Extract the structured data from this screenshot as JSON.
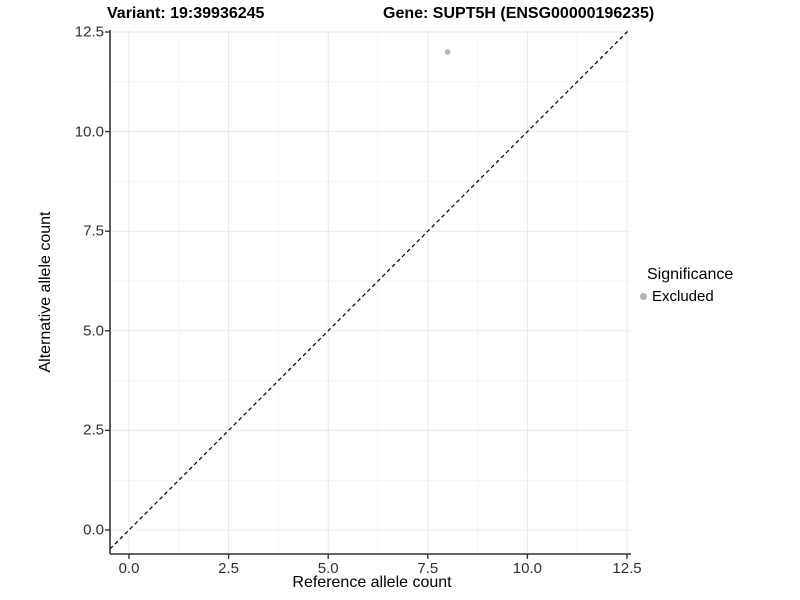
{
  "chart_data": {
    "type": "scatter",
    "title_left": "Variant: 19:39936245",
    "title_right": "Gene: SUPT5H (ENSG00000196235)",
    "xlabel": "Reference allele count",
    "ylabel": "Alternative allele count",
    "xlim": [
      -0.48,
      12.55
    ],
    "ylim": [
      -0.6,
      12.55
    ],
    "x_ticks": [
      0.0,
      2.5,
      5.0,
      7.5,
      10.0,
      12.5
    ],
    "y_ticks": [
      0.0,
      2.5,
      5.0,
      7.5,
      10.0,
      12.5
    ],
    "x_tick_labels": [
      "0.0",
      "2.5",
      "5.0",
      "7.5",
      "10.0",
      "12.5"
    ],
    "y_tick_labels": [
      "0.0",
      "2.5",
      "5.0",
      "7.5",
      "10.0",
      "12.5"
    ],
    "minor_x_ticks": [
      1.25,
      3.75,
      6.25,
      8.75,
      11.25
    ],
    "minor_y_ticks": [
      1.25,
      3.75,
      6.25,
      8.75,
      11.25
    ],
    "grid": true,
    "series": [
      {
        "name": "Excluded",
        "marker": "circle",
        "color": "#b3b3b3",
        "points": [
          {
            "x": 8,
            "y": 12
          }
        ]
      }
    ],
    "reference_line": {
      "type": "identity",
      "slope": 1,
      "intercept": 0,
      "style": "dashed",
      "color": "#000000"
    },
    "legend": {
      "title": "Significance",
      "position": "right",
      "entries": [
        {
          "label": "Excluded",
          "color": "#b3b3b3",
          "marker": "circle"
        }
      ]
    },
    "colors": {
      "background": "#ffffff",
      "grid_major": "#e9e9e9",
      "grid_minor": "#f4f4f4",
      "axis_line": "#333333",
      "tick_mark": "#333333",
      "tick_text": "#303030",
      "point": "#b3b3b3"
    }
  }
}
